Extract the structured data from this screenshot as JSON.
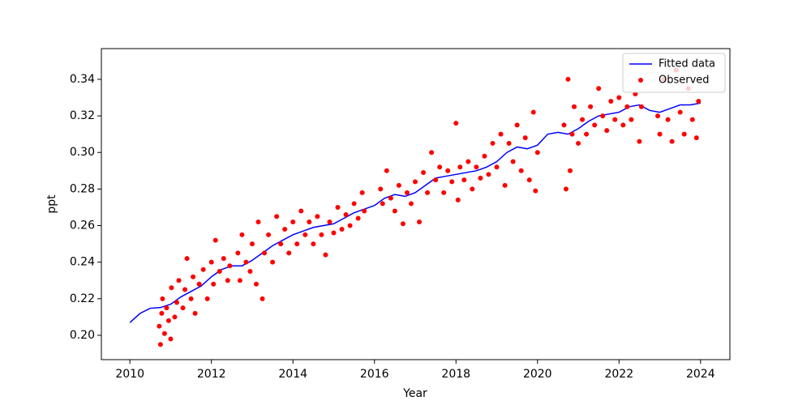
{
  "chart_data": {
    "type": "scatter",
    "xlabel": "Year",
    "ylabel": "ppt",
    "xlim": [
      2009.3,
      2024.72
    ],
    "ylim": [
      0.1867,
      0.3568
    ],
    "xticks": [
      2010,
      2012,
      2014,
      2016,
      2018,
      2020,
      2022,
      2024
    ],
    "yticks": [
      {
        "value": 0.2,
        "label": "0.20"
      },
      {
        "value": 0.22,
        "label": "0.22"
      },
      {
        "value": 0.24,
        "label": "0.24"
      },
      {
        "value": 0.26,
        "label": "0.26"
      },
      {
        "value": 0.28,
        "label": "0.28"
      },
      {
        "value": 0.3,
        "label": "0.30"
      },
      {
        "value": 0.32,
        "label": "0.32"
      },
      {
        "value": 0.34,
        "label": "0.34"
      }
    ],
    "legend": "upper right",
    "series": [
      {
        "name": "Fitted data",
        "color": "#0000ff",
        "kind": "line",
        "x": [
          2010.0,
          2010.25,
          2010.5,
          2010.75,
          2011.0,
          2011.25,
          2011.5,
          2011.75,
          2012.0,
          2012.25,
          2012.5,
          2012.75,
          2013.0,
          2013.25,
          2013.5,
          2013.75,
          2014.0,
          2014.25,
          2014.5,
          2014.75,
          2015.0,
          2015.25,
          2015.5,
          2015.75,
          2016.0,
          2016.25,
          2016.5,
          2016.75,
          2017.0,
          2017.25,
          2017.5,
          2017.75,
          2018.0,
          2018.25,
          2018.5,
          2018.75,
          2019.0,
          2019.25,
          2019.5,
          2019.75,
          2020.0,
          2020.25,
          2020.5,
          2020.75,
          2021.0,
          2021.25,
          2021.5,
          2021.75,
          2022.0,
          2022.25,
          2022.5,
          2022.75,
          2023.0,
          2023.25,
          2023.5,
          2023.75,
          2024.0
        ],
        "values": [
          0.207,
          0.212,
          0.2148,
          0.2152,
          0.217,
          0.221,
          0.224,
          0.227,
          0.232,
          0.236,
          0.238,
          0.238,
          0.241,
          0.245,
          0.249,
          0.252,
          0.255,
          0.257,
          0.259,
          0.26,
          0.261,
          0.264,
          0.267,
          0.269,
          0.271,
          0.275,
          0.277,
          0.276,
          0.278,
          0.282,
          0.286,
          0.287,
          0.288,
          0.289,
          0.29,
          0.292,
          0.295,
          0.3,
          0.303,
          0.302,
          0.304,
          0.31,
          0.311,
          0.31,
          0.313,
          0.317,
          0.32,
          0.321,
          0.322,
          0.325,
          0.326,
          0.323,
          0.322,
          0.324,
          0.326,
          0.326,
          0.327
        ]
      },
      {
        "name": "Observed",
        "color": "#ff0000",
        "kind": "points",
        "x": [
          2010.72,
          2010.75,
          2010.78,
          2010.8,
          2010.85,
          2010.9,
          2010.95,
          2011.0,
          2011.02,
          2011.1,
          2011.15,
          2011.2,
          2011.3,
          2011.35,
          2011.4,
          2011.5,
          2011.55,
          2011.6,
          2011.7,
          2011.8,
          2011.9,
          2012.0,
          2012.05,
          2012.1,
          2012.2,
          2012.3,
          2012.4,
          2012.45,
          2012.65,
          2012.7,
          2012.75,
          2012.85,
          2012.95,
          2013.0,
          2013.1,
          2013.15,
          2013.25,
          2013.3,
          2013.4,
          2013.5,
          2013.6,
          2013.7,
          2013.8,
          2013.9,
          2014.0,
          2014.1,
          2014.2,
          2014.3,
          2014.4,
          2014.5,
          2014.6,
          2014.7,
          2014.8,
          2014.9,
          2015.0,
          2015.1,
          2015.2,
          2015.3,
          2015.4,
          2015.5,
          2015.6,
          2015.7,
          2015.75,
          2016.15,
          2016.2,
          2016.3,
          2016.4,
          2016.5,
          2016.6,
          2016.7,
          2016.8,
          2016.9,
          2017.0,
          2017.1,
          2017.2,
          2017.3,
          2017.4,
          2017.5,
          2017.6,
          2017.7,
          2017.8,
          2017.9,
          2018.0,
          2018.05,
          2018.1,
          2018.2,
          2018.3,
          2018.4,
          2018.5,
          2018.6,
          2018.7,
          2018.8,
          2018.9,
          2019.0,
          2019.1,
          2019.2,
          2019.3,
          2019.4,
          2019.5,
          2019.6,
          2019.7,
          2019.8,
          2019.9,
          2019.95,
          2020.0,
          2020.65,
          2020.7,
          2020.75,
          2020.8,
          2020.85,
          2020.9,
          2021.0,
          2021.1,
          2021.2,
          2021.3,
          2021.4,
          2021.5,
          2021.6,
          2021.7,
          2021.8,
          2021.9,
          2022.0,
          2022.1,
          2022.2,
          2022.3,
          2022.4,
          2022.5,
          2022.55,
          2022.95,
          2023.0,
          2023.1,
          2023.2,
          2023.3,
          2023.4,
          2023.5,
          2023.6,
          2023.7,
          2023.8,
          2023.9,
          2023.95
        ],
        "values": [
          0.205,
          0.195,
          0.212,
          0.22,
          0.201,
          0.215,
          0.208,
          0.198,
          0.226,
          0.21,
          0.218,
          0.23,
          0.215,
          0.225,
          0.242,
          0.22,
          0.232,
          0.212,
          0.228,
          0.236,
          0.22,
          0.24,
          0.228,
          0.252,
          0.235,
          0.242,
          0.23,
          0.238,
          0.245,
          0.23,
          0.255,
          0.24,
          0.235,
          0.25,
          0.228,
          0.262,
          0.22,
          0.245,
          0.255,
          0.24,
          0.265,
          0.25,
          0.258,
          0.245,
          0.262,
          0.25,
          0.268,
          0.255,
          0.262,
          0.25,
          0.265,
          0.255,
          0.244,
          0.262,
          0.256,
          0.27,
          0.258,
          0.266,
          0.26,
          0.272,
          0.264,
          0.278,
          0.268,
          0.28,
          0.272,
          0.29,
          0.275,
          0.268,
          0.282,
          0.261,
          0.278,
          0.272,
          0.284,
          0.262,
          0.289,
          0.278,
          0.3,
          0.285,
          0.292,
          0.278,
          0.29,
          0.284,
          0.316,
          0.274,
          0.292,
          0.285,
          0.295,
          0.28,
          0.292,
          0.286,
          0.298,
          0.288,
          0.305,
          0.292,
          0.31,
          0.282,
          0.305,
          0.295,
          0.315,
          0.29,
          0.308,
          0.285,
          0.322,
          0.279,
          0.3,
          0.315,
          0.28,
          0.34,
          0.29,
          0.31,
          0.325,
          0.305,
          0.318,
          0.31,
          0.325,
          0.315,
          0.335,
          0.32,
          0.312,
          0.328,
          0.318,
          0.33,
          0.315,
          0.325,
          0.318,
          0.332,
          0.306,
          0.325,
          0.32,
          0.31,
          0.34,
          0.318,
          0.306,
          0.345,
          0.322,
          0.31,
          0.335,
          0.318,
          0.308,
          0.328
        ]
      }
    ]
  }
}
